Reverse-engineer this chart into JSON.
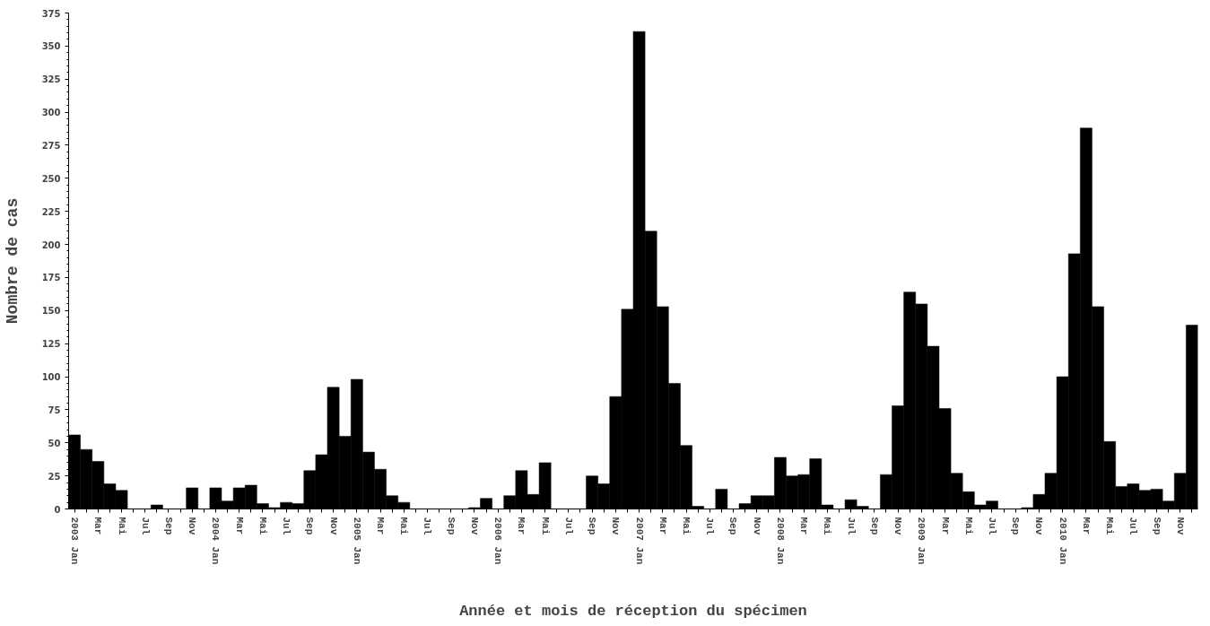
{
  "chart_data": {
    "type": "bar",
    "xlabel": "Année et mois de réception du spécimen",
    "ylabel": "Nombre de cas",
    "categories": [
      "2003 Jan",
      null,
      "Mar",
      null,
      "Mai",
      null,
      "Jul",
      null,
      "Sep",
      null,
      "Nov",
      null,
      "2004 Jan",
      null,
      "Mar",
      null,
      "Mai",
      null,
      "Jul",
      null,
      "Sep",
      null,
      "Nov",
      null,
      "2005 Jan",
      null,
      "Mar",
      null,
      "Mai",
      null,
      "Jul",
      null,
      "Sep",
      null,
      "Nov",
      null,
      "2006 Jan",
      null,
      "Mar",
      null,
      "Mai",
      null,
      "Jul",
      null,
      "Sep",
      null,
      "Nov",
      null,
      "2007 Jan",
      null,
      "Mar",
      null,
      "Mai",
      null,
      "Jul",
      null,
      "Sep",
      null,
      "Nov",
      null,
      "2008 Jan",
      null,
      "Mar",
      null,
      "Mai",
      null,
      "Jul",
      null,
      "Sep",
      null,
      "Nov",
      null,
      "2009 Jan",
      null,
      "Mar",
      null,
      "Mai",
      null,
      "Jul",
      null,
      "Sep",
      null,
      "Nov",
      null,
      "2010 Jan",
      null,
      "Mar",
      null,
      "Mai",
      null,
      "Jul",
      null,
      "Sep",
      null,
      "Nov",
      null
    ],
    "values": [
      56,
      45,
      36,
      19,
      14,
      0,
      0,
      3,
      0,
      0,
      16,
      0,
      16,
      6,
      16,
      18,
      4,
      1,
      5,
      4,
      29,
      41,
      92,
      55,
      98,
      43,
      30,
      10,
      5,
      0,
      0,
      0,
      0,
      0,
      1,
      8,
      0,
      10,
      29,
      11,
      35,
      0,
      0,
      0,
      25,
      19,
      85,
      151,
      361,
      210,
      153,
      95,
      48,
      2,
      0,
      15,
      0,
      4,
      10,
      10,
      39,
      25,
      26,
      38,
      3,
      0,
      7,
      2,
      0,
      26,
      78,
      164,
      155,
      123,
      76,
      27,
      13,
      3,
      6,
      0,
      0,
      1,
      11,
      27,
      100,
      193,
      288,
      153,
      51,
      17,
      19,
      14,
      15,
      6,
      27,
      139
    ],
    "color": "#000000",
    "ylim": [
      0,
      375
    ],
    "yticks": [
      0,
      25,
      50,
      75,
      100,
      125,
      150,
      175,
      200,
      225,
      250,
      275,
      300,
      325,
      350,
      375
    ],
    "grid": false
  }
}
